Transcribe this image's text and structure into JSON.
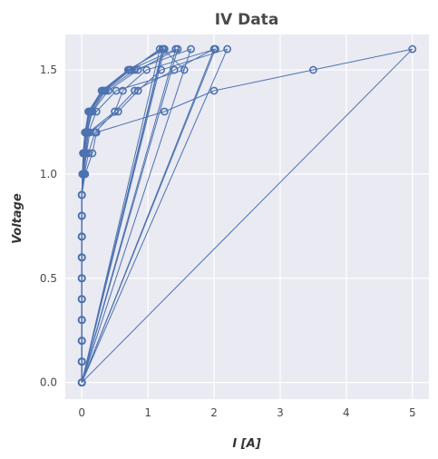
{
  "chart_data": {
    "type": "line",
    "title": "IV Data",
    "xlabel": "I [A]",
    "ylabel": "Voltage",
    "xlim": [
      -0.25,
      5.25
    ],
    "ylim": [
      -0.08,
      1.67
    ],
    "x_ticks": [
      0,
      1,
      2,
      3,
      4,
      5
    ],
    "y_ticks": [
      0.0,
      0.5,
      1.0,
      1.5
    ],
    "x_tick_labels": [
      "0",
      "1",
      "2",
      "3",
      "4",
      "5"
    ],
    "y_tick_labels": [
      "0.0",
      "0.5",
      "1.0",
      "1.5"
    ],
    "grid": true,
    "colors": {
      "series": "#4c72b0",
      "plot_bg": "#eaeaf2",
      "grid": "#ffffff"
    },
    "series": [
      {
        "x": [
          0,
          0,
          0,
          0,
          0,
          0,
          0,
          0,
          0,
          0,
          0.01,
          0.02,
          0.05,
          0.12,
          0.32,
          0.72,
          1.22,
          0
        ],
        "y": [
          0,
          0.1,
          0.2,
          0.3,
          0.4,
          0.5,
          0.6,
          0.7,
          0.8,
          0.9,
          1.0,
          1.1,
          1.2,
          1.3,
          1.4,
          1.5,
          1.6,
          0
        ]
      },
      {
        "x": [
          0,
          0,
          0,
          0,
          0,
          0,
          0,
          0,
          0,
          0,
          0.01,
          0.02,
          0.05,
          0.1,
          0.3,
          0.7,
          1.25,
          0
        ],
        "y": [
          0,
          0.1,
          0.2,
          0.3,
          0.4,
          0.5,
          0.6,
          0.7,
          0.8,
          0.9,
          1.0,
          1.1,
          1.2,
          1.3,
          1.4,
          1.5,
          1.6,
          0
        ]
      },
      {
        "x": [
          0,
          0,
          0,
          0,
          0,
          0,
          0,
          0,
          0,
          0,
          0.01,
          0.03,
          0.06,
          0.13,
          0.34,
          0.74,
          1.18,
          0
        ],
        "y": [
          0,
          0.1,
          0.2,
          0.3,
          0.4,
          0.5,
          0.6,
          0.7,
          0.8,
          0.9,
          1.0,
          1.1,
          1.2,
          1.3,
          1.4,
          1.5,
          1.6,
          0
        ]
      },
      {
        "x": [
          0,
          0,
          0,
          0,
          0,
          0,
          0,
          0,
          0,
          0,
          0.02,
          0.04,
          0.08,
          0.16,
          0.4,
          0.85,
          1.45,
          0
        ],
        "y": [
          0,
          0.1,
          0.2,
          0.3,
          0.4,
          0.5,
          0.6,
          0.7,
          0.8,
          0.9,
          1.0,
          1.1,
          1.2,
          1.3,
          1.4,
          1.5,
          1.6,
          0
        ]
      },
      {
        "x": [
          0,
          0,
          0,
          0,
          0,
          0,
          0,
          0,
          0,
          0,
          0.01,
          0.02,
          0.05,
          0.11,
          0.31,
          0.73,
          1.42,
          0
        ],
        "y": [
          0,
          0.1,
          0.2,
          0.3,
          0.4,
          0.5,
          0.6,
          0.7,
          0.8,
          0.9,
          1.0,
          1.1,
          1.2,
          1.3,
          1.4,
          1.5,
          1.6,
          0
        ]
      },
      {
        "x": [
          0,
          0,
          0,
          0,
          0,
          0,
          0,
          0,
          0,
          0,
          0.02,
          0.04,
          0.07,
          0.15,
          0.36,
          0.8,
          1.65,
          0
        ],
        "y": [
          0,
          0.1,
          0.2,
          0.3,
          0.4,
          0.5,
          0.6,
          0.7,
          0.8,
          0.9,
          1.0,
          1.1,
          1.2,
          1.3,
          1.4,
          1.5,
          1.6,
          0
        ]
      },
      {
        "x": [
          0,
          0,
          0,
          0,
          0,
          0,
          0,
          0,
          0,
          0,
          0.02,
          0.05,
          0.1,
          0.5,
          0.62,
          0.98,
          2.02,
          0
        ],
        "y": [
          0,
          0.1,
          0.2,
          0.3,
          0.4,
          0.5,
          0.6,
          0.7,
          0.8,
          0.9,
          1.0,
          1.1,
          1.2,
          1.3,
          1.4,
          1.5,
          1.6,
          0
        ]
      },
      {
        "x": [
          0,
          0,
          0,
          0,
          0,
          0,
          0,
          0,
          0,
          0,
          0.03,
          0.07,
          0.12,
          0.55,
          0.85,
          1.2,
          2.2,
          0
        ],
        "y": [
          0,
          0.1,
          0.2,
          0.3,
          0.4,
          0.5,
          0.6,
          0.7,
          0.8,
          0.9,
          1.0,
          1.1,
          1.2,
          1.3,
          1.4,
          1.5,
          1.6,
          0
        ]
      },
      {
        "x": [
          0,
          0,
          0,
          0,
          0,
          0,
          0,
          0,
          0,
          0,
          0.04,
          0.1,
          0.2,
          0.5,
          0.8,
          1.4,
          2.0,
          0
        ],
        "y": [
          0,
          0.1,
          0.2,
          0.3,
          0.4,
          0.5,
          0.6,
          0.7,
          0.8,
          0.9,
          1.0,
          1.1,
          1.2,
          1.3,
          1.4,
          1.5,
          1.6,
          0
        ]
      },
      {
        "x": [
          0,
          0,
          0,
          0,
          0,
          0,
          0,
          0,
          0,
          0,
          0.05,
          0.16,
          0.22,
          1.25,
          2.0,
          3.5,
          5.0,
          0
        ],
        "y": [
          0,
          0.1,
          0.2,
          0.3,
          0.4,
          0.5,
          0.6,
          0.7,
          0.8,
          0.9,
          1.0,
          1.1,
          1.2,
          1.3,
          1.4,
          1.5,
          1.6,
          0
        ]
      },
      {
        "x": [
          0,
          0,
          0,
          0,
          0,
          0,
          0,
          0,
          0,
          0,
          0.03,
          0.06,
          0.1,
          0.22,
          0.52,
          1.55,
          1.23,
          0
        ],
        "y": [
          0,
          0.1,
          0.2,
          0.3,
          0.4,
          0.5,
          0.6,
          0.7,
          0.8,
          0.9,
          1.0,
          1.1,
          1.2,
          1.3,
          1.4,
          1.5,
          1.6,
          0
        ]
      }
    ]
  }
}
